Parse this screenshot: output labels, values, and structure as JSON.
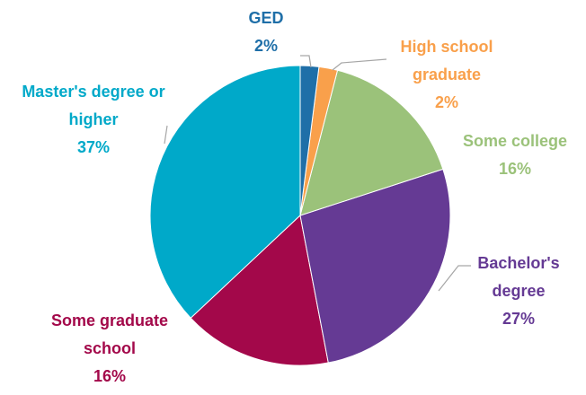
{
  "chart_data": {
    "type": "pie",
    "categories": [
      "GED",
      "High school graduate",
      "Some college",
      "Bachelor's degree",
      "Some graduate school",
      "Master's degree or higher"
    ],
    "values": [
      2,
      2,
      16,
      27,
      16,
      37
    ],
    "value_labels": [
      "2%",
      "2%",
      "16%",
      "27%",
      "16%",
      "37%"
    ],
    "colors": [
      "#1f6fa8",
      "#f9a04b",
      "#9bc27a",
      "#653a94",
      "#a3084a",
      "#00a9c9"
    ]
  }
}
